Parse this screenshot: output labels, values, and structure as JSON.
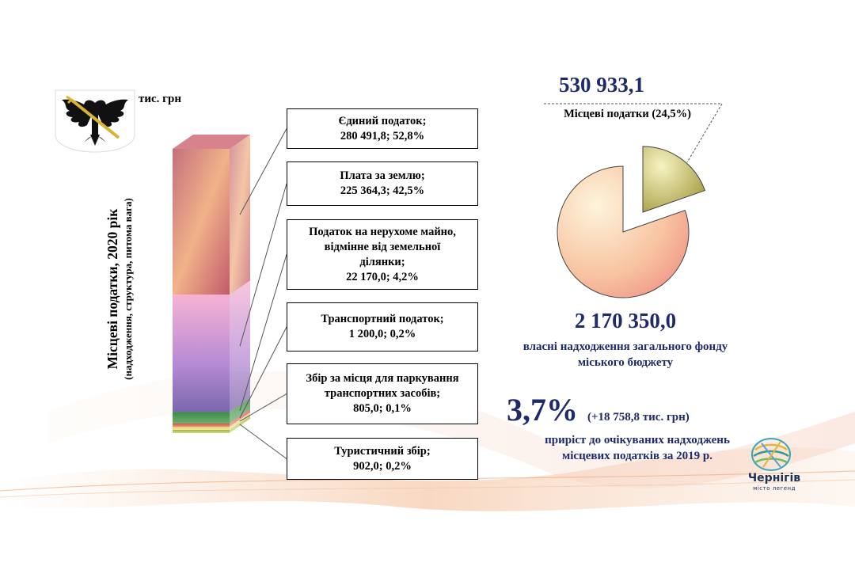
{
  "unit": "тис. грн",
  "vertical_title": {
    "line1": "Місцеві податки, 2020 рік",
    "line2": "(надходження, структура, питома вага)"
  },
  "chart_data": [
    {
      "type": "bar",
      "stacked": true,
      "title": "Місцеві податки, 2020 рік",
      "subtitle": "(надходження, структура, питома вага)",
      "unit": "тис. грн",
      "series": [
        {
          "name": "Єдиний податок",
          "value": 280491.8,
          "share": 52.8,
          "label_l1": "Єдиний податок;",
          "label_l2": "280 491,8; 52,8%",
          "color": "#e8896f"
        },
        {
          "name": "Плата за землю",
          "value": 225364.3,
          "share": 42.5,
          "label_l1": "Плата за землю;",
          "label_l2": "225 364,3; 42,5%",
          "color": "#c58fd8"
        },
        {
          "name": "Податок на нерухоме майно, відмінне від земельної ділянки",
          "value": 22170.0,
          "share": 4.2,
          "label_l1": "Податок на нерухоме майно,",
          "label_l1b": "відмінне від земельної",
          "label_l1c": "ділянки;",
          "label_l2": "22 170,0; 4,2%",
          "color": "#3f8f4f"
        },
        {
          "name": "Транспортний податок",
          "value": 1200.0,
          "share": 0.2,
          "label_l1": "Транспортний податок;",
          "label_l2": "1 200,0; 0,2%",
          "color": "#d9534f"
        },
        {
          "name": "Збір за місця для паркування транспортних засобів",
          "value": 805.0,
          "share": 0.1,
          "label_l1": "Збір за місця для паркування",
          "label_l1b": "транспортних засобів;",
          "label_l2": "805,0; 0,1%",
          "color": "#e6d36a"
        },
        {
          "name": "Туристичний збір",
          "value": 902.0,
          "share": 0.2,
          "label_l1": "Туристичний збір;",
          "label_l2": "902,0; 0,2%",
          "color": "#b8c85a"
        }
      ]
    },
    {
      "type": "pie",
      "slices": [
        {
          "name": "Місцеві податки",
          "value": 530933.1,
          "share": 24.5,
          "color": "#c9c56a"
        },
        {
          "name": "власні надходження загального фонду міського бюджету",
          "value": 2170350.0,
          "share": 75.5,
          "color": "#f4a08a"
        }
      ]
    }
  ],
  "local_taxes": {
    "total": "530 933,1",
    "label": "Місцеві податки (24,5%)"
  },
  "own_revenue": {
    "total": "2 170 350,0",
    "label_l1": "власні надходження загального фонду",
    "label_l2": "міського бюджету"
  },
  "growth": {
    "pct": "3,7%",
    "abs": "(+18 758,8 тис. грн)",
    "label_l1": "приріст до очікуваних надходжень",
    "label_l2": "місцевих податків за 2019 р."
  },
  "logo": {
    "name": "Чернігів",
    "tagline": "місто легенд"
  },
  "icons": {
    "coat_of_arms": "eagle-coat-of-arms-icon",
    "city_logo": "chernihiv-logo-icon"
  }
}
